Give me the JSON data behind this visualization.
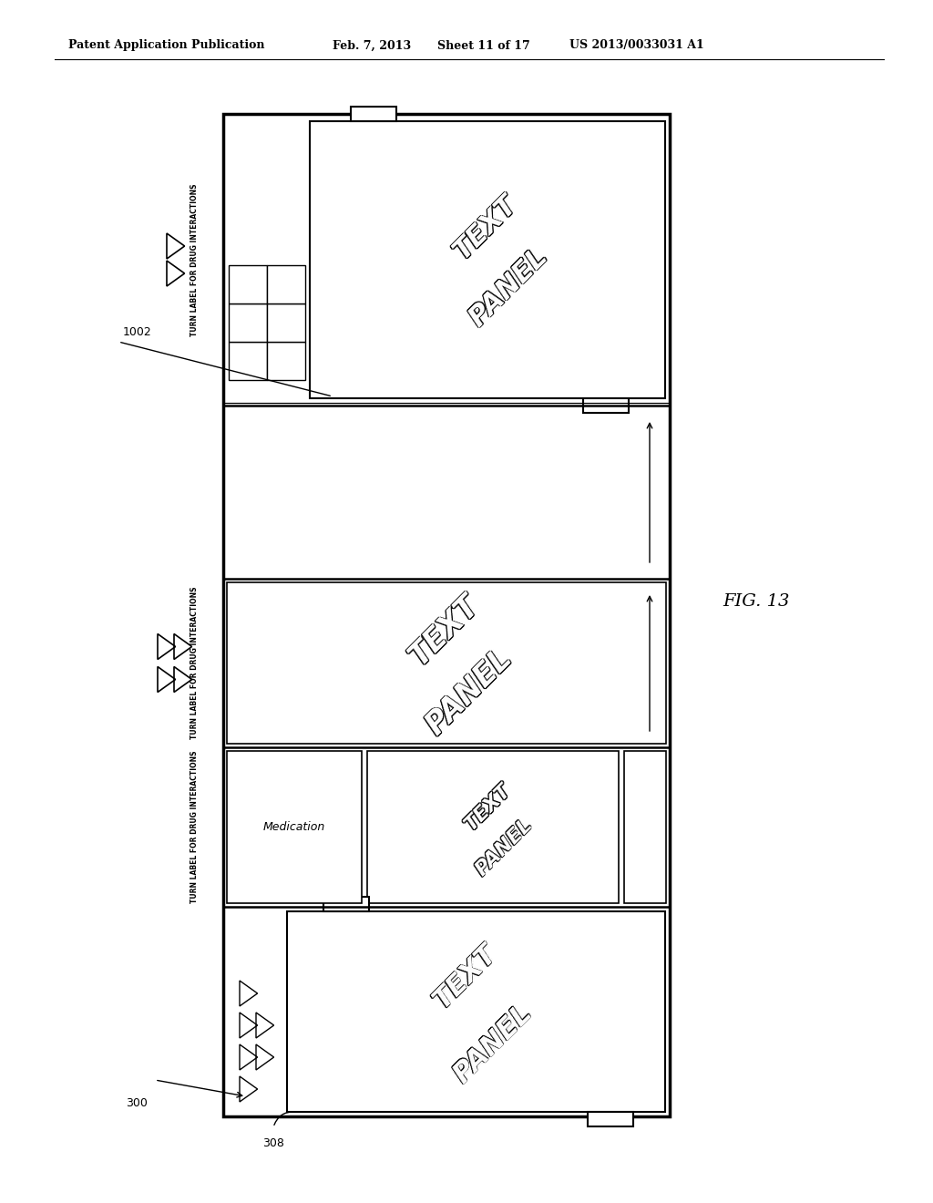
{
  "bg_color": "#ffffff",
  "header_text": "Patent Application Publication",
  "header_date": "Feb. 7, 2013",
  "header_sheet": "Sheet 11 of 17",
  "header_patent": "US 2013/0033031 A1",
  "fig_label": "FIG. 13",
  "label_300": "300",
  "label_308": "308",
  "label_1002": "1002",
  "line_color": "#000000"
}
